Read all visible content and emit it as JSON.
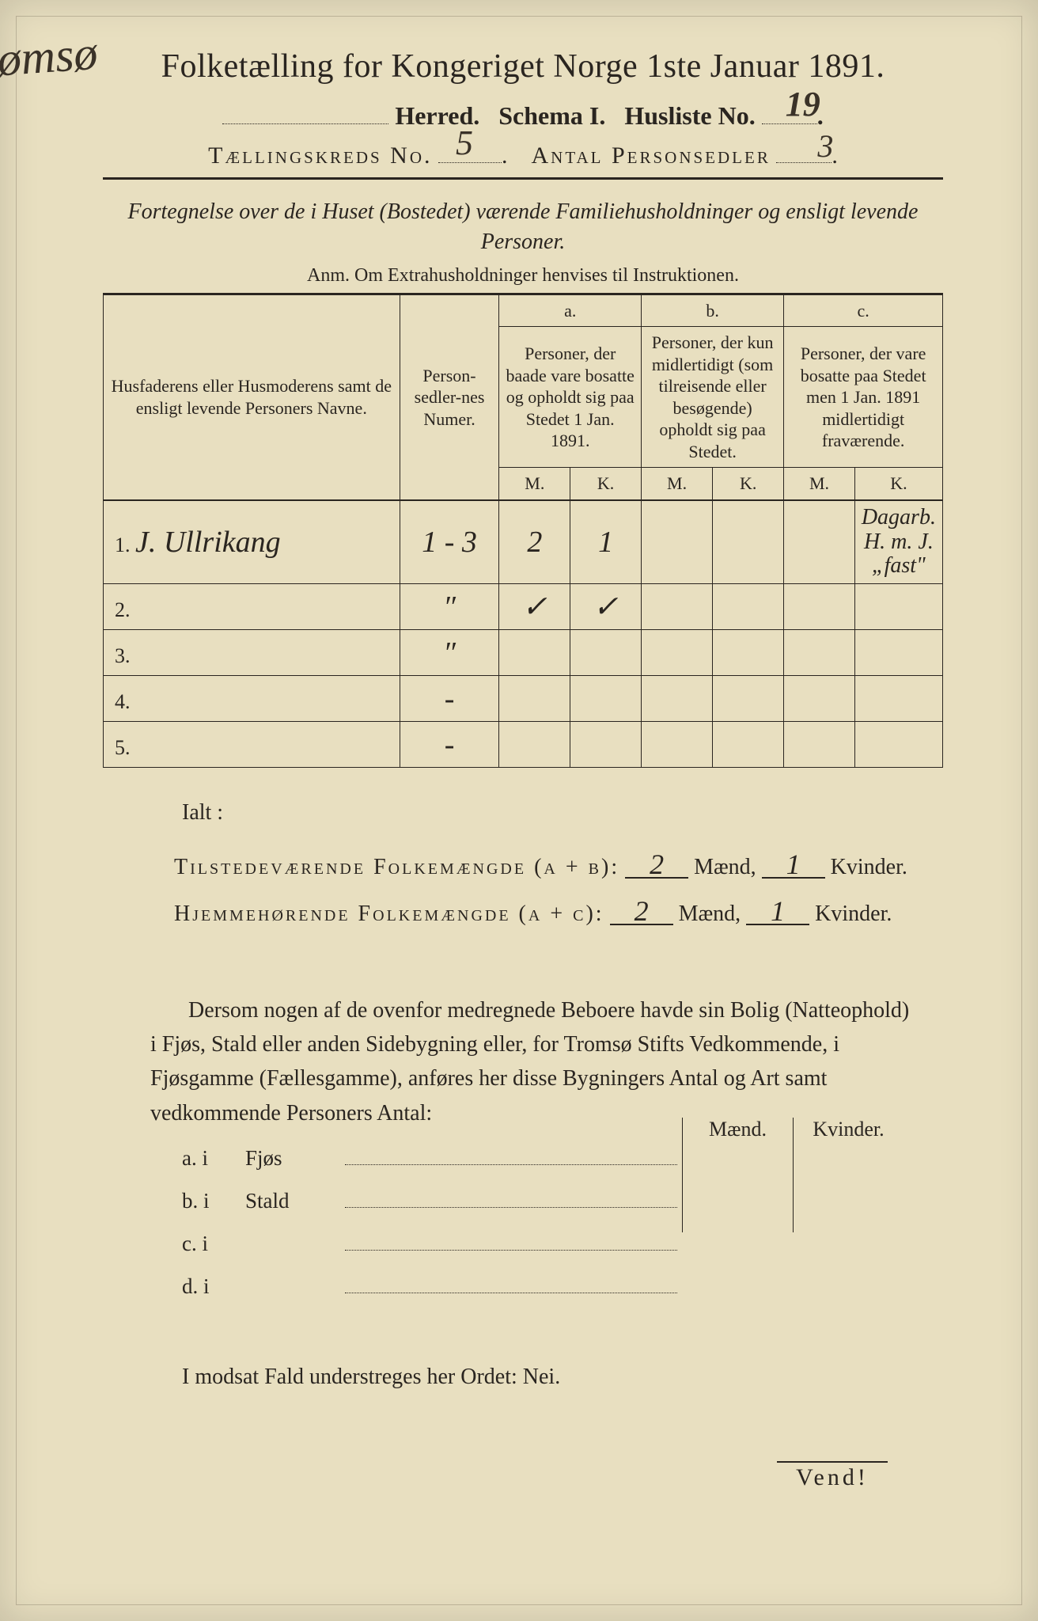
{
  "header": {
    "title": "Folketælling for Kongeriget Norge 1ste Januar 1891.",
    "herred_handwritten": "Jømsø",
    "herred_label": "Herred.",
    "schema_label": "Schema I.",
    "husliste_label": "Husliste No.",
    "husliste_no": "19",
    "kreds_label": "Tællingskreds No.",
    "kreds_no": "5",
    "antal_label": "Antal Personsedler",
    "antal_no": "3"
  },
  "subtitle": {
    "line": "Fortegnelse over de i Huset (Bostedet) værende Familiehusholdninger og ensligt levende Personer.",
    "anm": "Anm.  Om Extrahusholdninger henvises til Instruktionen."
  },
  "table": {
    "col_name": "Husfaderens eller Husmoderens samt de ensligt levende Personers Navne.",
    "col_num": "Person-sedler-nes Numer.",
    "col_a_head": "a.",
    "col_a": "Personer, der baade vare bosatte og opholdt sig paa Stedet 1 Jan. 1891.",
    "col_b_head": "b.",
    "col_b": "Personer, der kun midlertidigt (som tilreisende eller besøgende) opholdt sig paa Stedet.",
    "col_c_head": "c.",
    "col_c": "Personer, der vare bosatte paa Stedet men 1 Jan. 1891 midlertidigt fraværende.",
    "mk_m": "M.",
    "mk_k": "K.",
    "rows": [
      {
        "num": "1.",
        "name_hw": "J. Ullrikang",
        "psed": "1 - 3",
        "a_m": "2",
        "a_k": "1",
        "b_m": "",
        "b_k": "",
        "c_m": "",
        "c_k": "",
        "marginal": "Dagarb. H. m. J. „fast\""
      },
      {
        "num": "2.",
        "name_hw": "",
        "psed": "″",
        "a_m": "✓",
        "a_k": "✓",
        "b_m": "",
        "b_k": "",
        "c_m": "",
        "c_k": ""
      },
      {
        "num": "3.",
        "name_hw": "",
        "psed": "″",
        "a_m": "",
        "a_k": "",
        "b_m": "",
        "b_k": "",
        "c_m": "",
        "c_k": ""
      },
      {
        "num": "4.",
        "name_hw": "",
        "psed": "-",
        "a_m": "",
        "a_k": "",
        "b_m": "",
        "b_k": "",
        "c_m": "",
        "c_k": ""
      },
      {
        "num": "5.",
        "name_hw": "",
        "psed": "-",
        "a_m": "",
        "a_k": "",
        "b_m": "",
        "b_k": "",
        "c_m": "",
        "c_k": ""
      }
    ]
  },
  "totals": {
    "ialt": "Ialt :",
    "tilstede_label": "Tilstedeværende Folkemængde (a + b):",
    "hjemme_label": "Hjemmehørende Folkemængde (a + c):",
    "maend": "Mænd,",
    "kvinder": "Kvinder.",
    "tilstede_m": "2",
    "tilstede_k": "1",
    "hjemme_m": "2",
    "hjemme_k": "1"
  },
  "para": "Dersom nogen af de ovenfor medregnede Beboere havde sin Bolig (Natteophold) i Fjøs, Stald eller anden Sidebygning eller, for Tromsø Stifts Vedkommende, i Fjøsgamme (Fællesgamme), anføres her disse Bygningers Antal og Art samt vedkommende Personers Antal:",
  "bottom_table": {
    "head_m": "Mænd.",
    "head_k": "Kvinder.",
    "rows": [
      {
        "lbl": "a.  i",
        "word": "Fjøs"
      },
      {
        "lbl": "b.  i",
        "word": "Stald"
      },
      {
        "lbl": "c.  i",
        "word": ""
      },
      {
        "lbl": "d.  i",
        "word": ""
      }
    ]
  },
  "modsat": "I modsat Fald understreges her Ordet:  Nei.",
  "vend": "Vend!",
  "colors": {
    "paper": "#e8dfc0",
    "ink": "#2a2520",
    "handwriting": "#3a3228"
  }
}
